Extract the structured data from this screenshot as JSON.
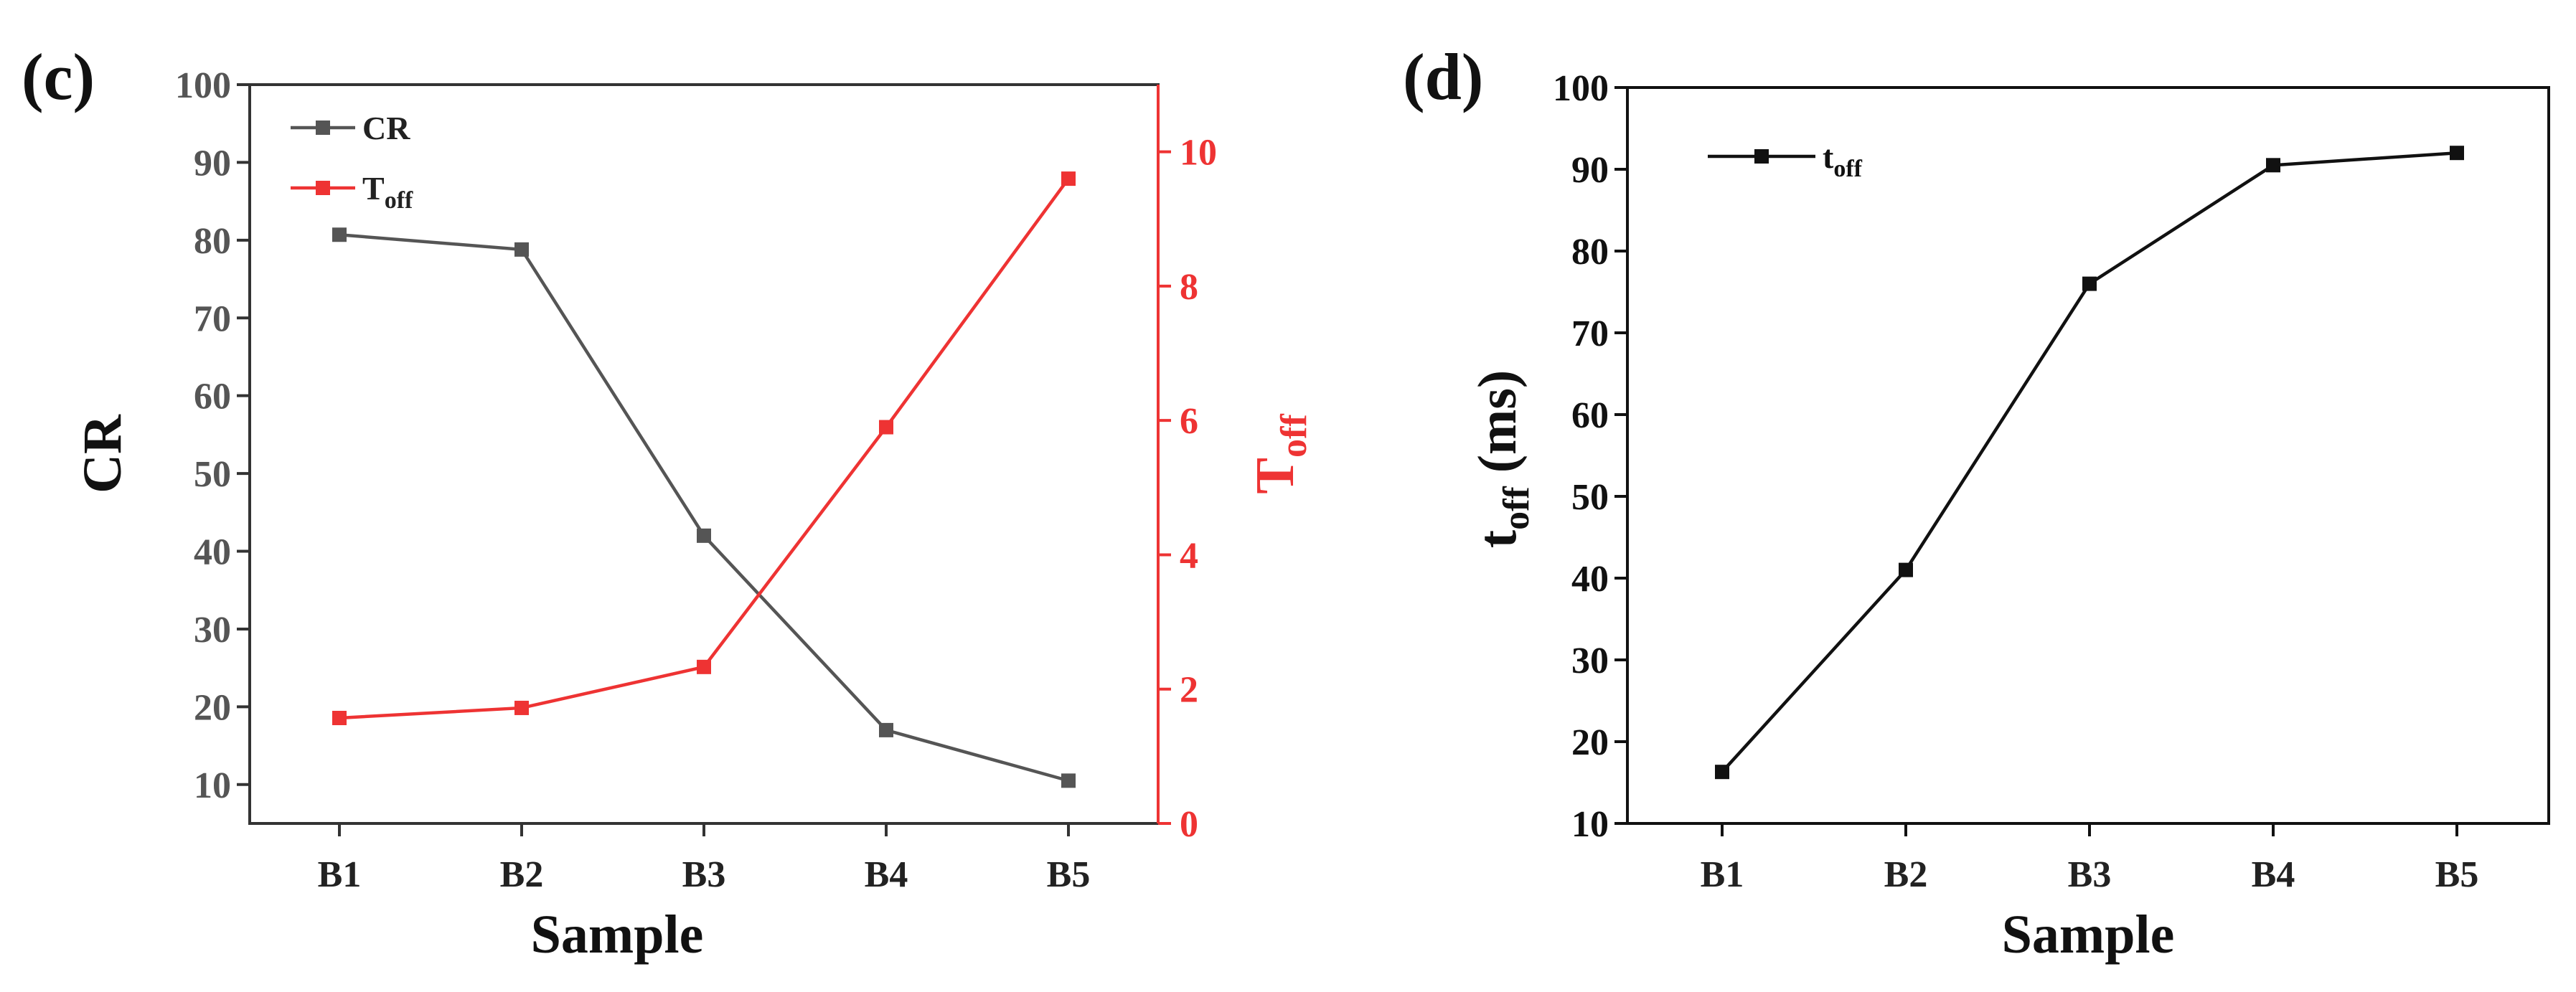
{
  "panels": {
    "c": {
      "label": "(c)"
    },
    "d": {
      "label": "(d)"
    }
  },
  "chart_data": [
    {
      "type": "line",
      "panel": "(c)",
      "categories": [
        "B1",
        "B2",
        "B3",
        "B4",
        "B5"
      ],
      "xlabel": "Sample",
      "ylabel_left": "CR",
      "ylabel_right": {
        "base": "T",
        "sub": "off"
      },
      "ylim_left": [
        5,
        100
      ],
      "yticks_left": [
        10,
        20,
        30,
        40,
        50,
        60,
        70,
        80,
        90,
        100
      ],
      "ylim_right": [
        0,
        11
      ],
      "yticks_right": [
        0,
        2,
        4,
        6,
        8,
        10
      ],
      "series": [
        {
          "name": "CR",
          "legend_base": "CR",
          "legend_sub": "",
          "axis": "left",
          "color": "#555555",
          "marker": "square",
          "values": [
            80.7,
            78.8,
            42.0,
            17.0,
            10.5
          ]
        },
        {
          "name": "Toff",
          "legend_base": "T",
          "legend_sub": "off",
          "axis": "right",
          "color": "#ee3333",
          "marker": "square",
          "values": [
            1.57,
            1.72,
            2.33,
            5.9,
            9.6
          ]
        }
      ],
      "legend_position": "top-left",
      "grid": false
    },
    {
      "type": "line",
      "panel": "(d)",
      "categories": [
        "B1",
        "B2",
        "B3",
        "B4",
        "B5"
      ],
      "xlabel": "Sample",
      "ylabel": {
        "base": "t",
        "sub": "off",
        "unit": " (ms)"
      },
      "ylim": [
        10,
        100
      ],
      "yticks": [
        10,
        20,
        30,
        40,
        50,
        60,
        70,
        80,
        90,
        100
      ],
      "series": [
        {
          "name": "toff",
          "legend_base": "t",
          "legend_sub": "off",
          "color": "#111111",
          "marker": "square",
          "values": [
            16.3,
            41.0,
            76.0,
            90.5,
            92.0
          ]
        }
      ],
      "legend_position": "top-left",
      "grid": false
    }
  ]
}
